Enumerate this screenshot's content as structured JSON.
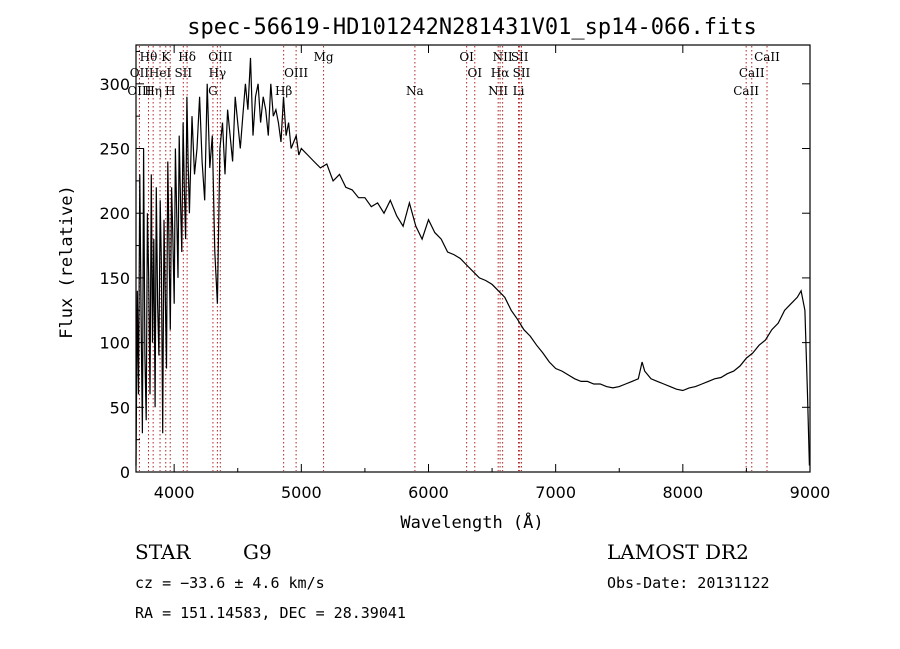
{
  "chart_data": {
    "type": "line",
    "title": "spec-56619-HD101242N281431V01_sp14-066.fits",
    "xlabel": "Wavelength (Å)",
    "ylabel": "Flux (relative)",
    "xlim": [
      3700,
      9000
    ],
    "ylim": [
      0,
      330
    ],
    "xticks": [
      4000,
      5000,
      6000,
      7000,
      8000,
      9000
    ],
    "yticks": [
      0,
      50,
      100,
      150,
      200,
      250,
      300
    ],
    "grid": false,
    "colors": {
      "line": "#000000",
      "marker": "#b22222",
      "text": "#000000"
    },
    "spectral_lines": [
      {
        "label": "Hθ",
        "wavelength": 3798,
        "row": 0
      },
      {
        "label": "K",
        "wavelength": 3934,
        "row": 0
      },
      {
        "label": "Hδ",
        "wavelength": 4102,
        "row": 0
      },
      {
        "label": "OIII",
        "wavelength": 4363,
        "row": 0
      },
      {
        "label": "Mg",
        "wavelength": 5175,
        "row": 0
      },
      {
        "label": "OI",
        "wavelength": 6300,
        "row": 0
      },
      {
        "label": "NII",
        "wavelength": 6583,
        "row": 0
      },
      {
        "label": "SII",
        "wavelength": 6717,
        "row": 0
      },
      {
        "label": "CaII",
        "wavelength": 8662,
        "row": 0
      },
      {
        "label": "OII",
        "wavelength": 3727,
        "row": 1
      },
      {
        "label": "HeI",
        "wavelength": 3889,
        "row": 1
      },
      {
        "label": "SII",
        "wavelength": 4072,
        "row": 1
      },
      {
        "label": "Hγ",
        "wavelength": 4340,
        "row": 1
      },
      {
        "label": "OIII",
        "wavelength": 4959,
        "row": 1
      },
      {
        "label": "OI",
        "wavelength": 6364,
        "row": 1
      },
      {
        "label": "Hα",
        "wavelength": 6563,
        "row": 1
      },
      {
        "label": "SII",
        "wavelength": 6731,
        "row": 1
      },
      {
        "label": "CaII",
        "wavelength": 8542,
        "row": 1
      },
      {
        "label": "OIII",
        "wavelength": 3727,
        "row": 2
      },
      {
        "label": "Hη",
        "wavelength": 3835,
        "row": 2
      },
      {
        "label": "H",
        "wavelength": 3969,
        "row": 2
      },
      {
        "label": "G",
        "wavelength": 4305,
        "row": 2
      },
      {
        "label": "Hβ",
        "wavelength": 4861,
        "row": 2
      },
      {
        "label": "Na",
        "wavelength": 5893,
        "row": 2
      },
      {
        "label": "NII",
        "wavelength": 6548,
        "row": 2
      },
      {
        "label": "Li",
        "wavelength": 6708,
        "row": 2
      },
      {
        "label": "CaII",
        "wavelength": 8498,
        "row": 2
      }
    ],
    "series": [
      {
        "x": [
          3700,
          3710,
          3720,
          3730,
          3740,
          3750,
          3760,
          3770,
          3780,
          3790,
          3800,
          3810,
          3820,
          3830,
          3840,
          3850,
          3860,
          3870,
          3880,
          3890,
          3900,
          3910,
          3920,
          3930,
          3940,
          3950,
          3960,
          3970,
          3980,
          3990,
          4000,
          4010,
          4020,
          4030,
          4040,
          4050,
          4060,
          4070,
          4080,
          4090,
          4100,
          4110,
          4120,
          4140,
          4160,
          4180,
          4200,
          4220,
          4240,
          4260,
          4280,
          4300,
          4320,
          4340,
          4360,
          4380,
          4400,
          4420,
          4440,
          4460,
          4480,
          4500,
          4520,
          4540,
          4560,
          4580,
          4600,
          4620,
          4640,
          4660,
          4680,
          4700,
          4720,
          4740,
          4760,
          4780,
          4800,
          4820,
          4840,
          4860,
          4880,
          4900,
          4920,
          4940,
          4960,
          4980,
          5000,
          5050,
          5100,
          5150,
          5200,
          5250,
          5300,
          5350,
          5400,
          5450,
          5500,
          5550,
          5600,
          5650,
          5700,
          5750,
          5800,
          5850,
          5900,
          5950,
          6000,
          6050,
          6100,
          6150,
          6200,
          6250,
          6300,
          6350,
          6400,
          6450,
          6500,
          6550,
          6600,
          6650,
          6700,
          6750,
          6800,
          6850,
          6900,
          6950,
          7000,
          7050,
          7100,
          7150,
          7200,
          7250,
          7300,
          7350,
          7400,
          7450,
          7500,
          7550,
          7600,
          7650,
          7680,
          7700,
          7750,
          7800,
          7850,
          7900,
          7950,
          8000,
          8050,
          8100,
          8150,
          8200,
          8250,
          8300,
          8350,
          8400,
          8450,
          8500,
          8550,
          8600,
          8650,
          8700,
          8750,
          8800,
          8850,
          8900,
          8930,
          8960,
          8980,
          8995
        ],
        "y": [
          5,
          140,
          60,
          230,
          120,
          30,
          250,
          90,
          40,
          200,
          150,
          60,
          230,
          100,
          180,
          50,
          220,
          130,
          90,
          210,
          160,
          30,
          195,
          140,
          80,
          240,
          170,
          110,
          220,
          180,
          130,
          250,
          200,
          150,
          260,
          210,
          170,
          270,
          220,
          180,
          290,
          240,
          200,
          275,
          230,
          250,
          290,
          240,
          210,
          300,
          235,
          260,
          170,
          130,
          250,
          270,
          230,
          280,
          260,
          240,
          290,
          270,
          250,
          275,
          300,
          280,
          320,
          260,
          290,
          300,
          270,
          290,
          280,
          260,
          300,
          275,
          280,
          270,
          255,
          290,
          260,
          270,
          250,
          255,
          260,
          245,
          250,
          245,
          240,
          235,
          238,
          225,
          230,
          220,
          218,
          212,
          212,
          205,
          208,
          200,
          210,
          198,
          190,
          208,
          190,
          180,
          195,
          185,
          180,
          170,
          168,
          165,
          160,
          155,
          150,
          148,
          145,
          140,
          135,
          125,
          118,
          110,
          105,
          98,
          92,
          85,
          80,
          78,
          75,
          72,
          70,
          70,
          68,
          68,
          66,
          65,
          66,
          68,
          70,
          72,
          85,
          78,
          72,
          70,
          68,
          66,
          64,
          63,
          65,
          66,
          68,
          70,
          72,
          73,
          76,
          78,
          82,
          88,
          92,
          98,
          102,
          110,
          115,
          125,
          130,
          135,
          140,
          125,
          60,
          5
        ]
      }
    ]
  },
  "info": {
    "object_class": "STAR",
    "subclass": "G9",
    "survey": "LAMOST DR2",
    "cz": "cz = −33.6 ± 4.6 km/s",
    "obs_date": "Obs-Date: 20131122",
    "coords": "RA = 151.14583, DEC =  28.39041"
  }
}
